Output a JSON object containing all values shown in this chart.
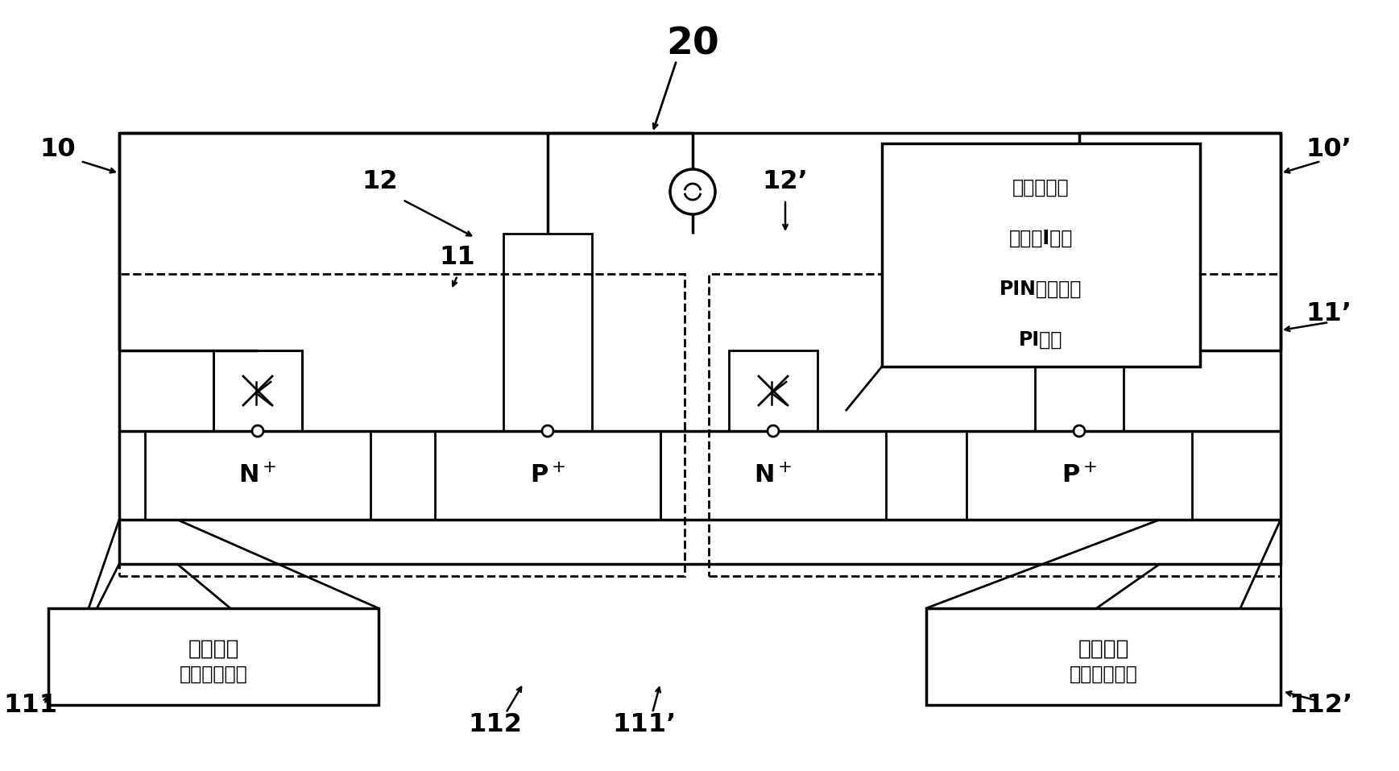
{
  "bg_color": "#ffffff",
  "line_color": "#000000",
  "label_20": "20",
  "label_10": "10",
  "label_10p": "10’",
  "label_11": "11",
  "label_11p": "11’",
  "label_12": "12",
  "label_12p": "12’",
  "label_111": "111",
  "label_111p": "111’",
  "label_112": "112",
  "label_112p": "112’",
  "box1_line1": "正向偏置",
  "box1_line2": "（反向偏置）",
  "box2_line1": "反向偏置",
  "box2_line2": "（正向偏置）",
  "note_line1": "掺杂区域可",
  "note_line2": "扩展到I区，",
  "note_line3": "PIN结构变为",
  "note_line4": "PI结构"
}
